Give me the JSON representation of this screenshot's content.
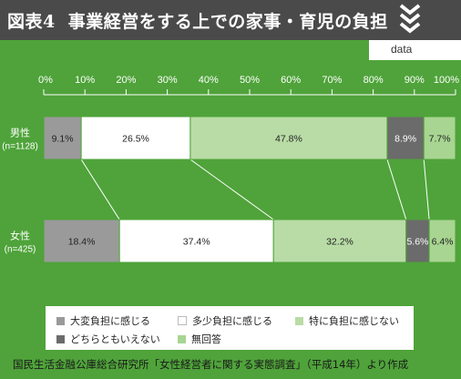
{
  "header": {
    "figure_number": "図表4",
    "title": "事業経営をする上での家事・育児の負担",
    "tab_label": "data"
  },
  "chart_data": {
    "type": "bar",
    "orientation": "horizontal",
    "stacked": "percent",
    "x_ticks": [
      "0%",
      "10%",
      "20%",
      "30%",
      "40%",
      "50%",
      "60%",
      "70%",
      "80%",
      "90%",
      "100%"
    ],
    "xlim": [
      0,
      100
    ],
    "categories": [
      {
        "label": "男性",
        "sublabel": "(n=1128)"
      },
      {
        "label": "女性",
        "sublabel": "(n=425)"
      }
    ],
    "series": [
      {
        "name": "大変負担に感じる",
        "color": "#9a9a9a",
        "values": [
          9.1,
          18.4
        ],
        "labels": [
          "9.1%",
          "18.4%"
        ]
      },
      {
        "name": "多少負担に感じる",
        "color": "#ffffff",
        "values": [
          26.5,
          37.4
        ],
        "labels": [
          "26.5%",
          "37.4%"
        ]
      },
      {
        "name": "特に負担に感じない",
        "color": "#b9dca6",
        "values": [
          47.8,
          32.2
        ],
        "labels": [
          "47.8%",
          "32.2%"
        ]
      },
      {
        "name": "どちらともいえない",
        "color": "#6b6b6b",
        "values": [
          8.9,
          5.6
        ],
        "labels": [
          "8.9%",
          "5.6%"
        ]
      },
      {
        "name": "無回答",
        "color": "#a8d592",
        "values": [
          7.7,
          6.4
        ],
        "labels": [
          "7.7%",
          "6.4%"
        ]
      }
    ],
    "legend_placement": "bottom"
  },
  "source": "国民生活金融公庫総合研究所「女性経営者に関する実態調査」（平成14年）より作成"
}
